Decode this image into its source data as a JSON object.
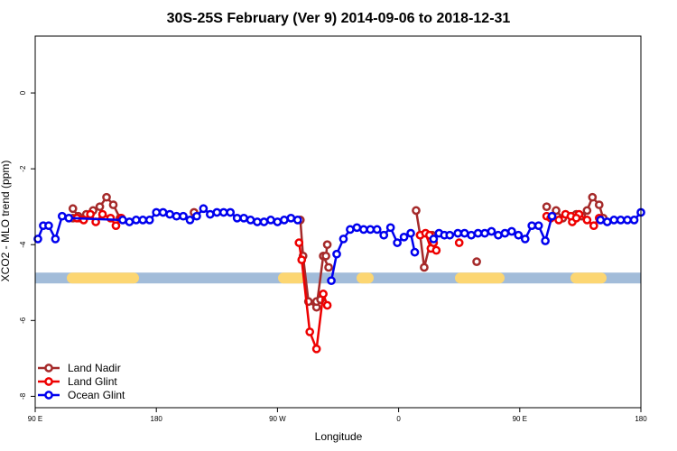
{
  "chart_data": {
    "type": "line",
    "title": "30S-25S February (Ver 9)   2014-09-06 to 2018-12-31",
    "xlabel": "Longitude",
    "ylabel": "XCO2 - MLO trend (ppm)",
    "xlim": [
      90,
      540
    ],
    "ylim": [
      -8.3,
      1.5
    ],
    "x_ticks": [
      90,
      180,
      270,
      360,
      450,
      540
    ],
    "x_tick_labels": [
      "90 E",
      "180",
      "90 W",
      "0",
      "90 E",
      "180"
    ],
    "y_ticks": [
      0,
      -2,
      -4,
      -6,
      -8
    ],
    "y_tick_labels": [
      "0",
      "-2",
      "-4",
      "-6",
      "-8"
    ],
    "band": {
      "y": -4.88,
      "base_color": "#a2bcd9",
      "land_color": "#fcd672",
      "land_segments": [
        [
          114,
          154
        ],
        [
          308,
          338
        ],
        [
          395,
          414
        ],
        [
          504,
          559
        ],
        [
          632,
          672
        ]
      ]
    },
    "legend_position": "bottom-left",
    "series": [
      {
        "name": "Land Nadir",
        "color": "#a52a2a",
        "segments": [
          [
            [
              118,
              -3.3
            ],
            [
              123,
              -3.3
            ],
            [
              128,
              -3.2
            ],
            [
              133,
              -3.1
            ],
            [
              138,
              -3.0
            ],
            [
              143,
              -2.75
            ],
            [
              148,
              -2.95
            ],
            [
              153,
              -3.3
            ]
          ],
          [
            [
              118,
              -3.05
            ],
            [
              122,
              -3.25
            ]
          ],
          [
            [
              287,
              -3.35
            ],
            [
              289,
              -4.3
            ],
            [
              293,
              -5.5
            ],
            [
              299,
              -5.65
            ],
            [
              304,
              -4.3
            ],
            [
              308,
              -4.6
            ]
          ],
          [
            [
              306,
              -4.3
            ],
            [
              307,
              -4.0
            ]
          ],
          [
            [
              373,
              -3.1
            ],
            [
              376,
              -3.75
            ],
            [
              379,
              -4.6
            ],
            [
              385,
              -3.75
            ]
          ],
          [
            [
              418,
              -4.45
            ]
          ],
          [
            [
              208,
              -3.15
            ]
          ],
          [
            [
              299,
              -5.5
            ],
            [
              302,
              -5.45
            ]
          ],
          [
            [
              477,
              -3.1
            ],
            [
              482,
              -3.3
            ],
            [
              492,
              -3.2
            ],
            [
              496,
              -3.25
            ],
            [
              500,
              -3.1
            ],
            [
              504,
              -2.75
            ],
            [
              509,
              -2.95
            ],
            [
              512,
              -3.3
            ]
          ],
          [
            [
              470,
              -3.0
            ]
          ]
        ]
      },
      {
        "name": "Land Glint",
        "color": "#ee0000",
        "segments": [
          [
            [
              121,
              -3.3
            ],
            [
              126,
              -3.35
            ],
            [
              131,
              -3.2
            ],
            [
              135,
              -3.4
            ],
            [
              140,
              -3.2
            ],
            [
              146,
              -3.3
            ],
            [
              150,
              -3.5
            ],
            [
              154,
              -3.3
            ]
          ],
          [
            [
              286,
              -3.95
            ],
            [
              288,
              -4.4
            ],
            [
              294,
              -6.3
            ],
            [
              299,
              -6.75
            ],
            [
              304,
              -5.3
            ],
            [
              307,
              -5.6
            ]
          ],
          [
            [
              376,
              -3.75
            ],
            [
              380,
              -3.7
            ],
            [
              384,
              -4.1
            ],
            [
              388,
              -4.15
            ]
          ],
          [
            [
              383,
              -3.75
            ],
            [
              386,
              -3.95
            ]
          ],
          [
            [
              405,
              -3.95
            ]
          ],
          [
            [
              470,
              -3.25
            ],
            [
              473,
              -3.3
            ],
            [
              479,
              -3.35
            ],
            [
              484,
              -3.2
            ],
            [
              489,
              -3.4
            ],
            [
              494,
              -3.2
            ],
            [
              500,
              -3.35
            ],
            [
              505,
              -3.5
            ],
            [
              509,
              -3.3
            ]
          ],
          [
            [
              488,
              -3.25
            ],
            [
              492,
              -3.3
            ]
          ]
        ]
      },
      {
        "name": "Ocean Glint",
        "color": "#0000ee",
        "segments": [
          [
            [
              92,
              -3.85
            ],
            [
              96,
              -3.5
            ],
            [
              100,
              -3.5
            ],
            [
              105,
              -3.85
            ],
            [
              110,
              -3.25
            ],
            [
              115,
              -3.3
            ],
            [
              155,
              -3.35
            ],
            [
              160,
              -3.4
            ],
            [
              165,
              -3.35
            ],
            [
              170,
              -3.35
            ],
            [
              175,
              -3.35
            ],
            [
              180,
              -3.15
            ],
            [
              185,
              -3.15
            ],
            [
              190,
              -3.2
            ],
            [
              195,
              -3.25
            ],
            [
              200,
              -3.25
            ],
            [
              205,
              -3.35
            ],
            [
              210,
              -3.25
            ],
            [
              215,
              -3.05
            ],
            [
              220,
              -3.2
            ],
            [
              225,
              -3.15
            ],
            [
              230,
              -3.15
            ],
            [
              235,
              -3.15
            ],
            [
              240,
              -3.3
            ],
            [
              245,
              -3.3
            ],
            [
              250,
              -3.35
            ],
            [
              255,
              -3.4
            ],
            [
              260,
              -3.4
            ],
            [
              265,
              -3.35
            ],
            [
              270,
              -3.4
            ],
            [
              275,
              -3.35
            ],
            [
              280,
              -3.3
            ],
            [
              285,
              -3.35
            ]
          ],
          [
            [
              310,
              -4.95
            ],
            [
              314,
              -4.25
            ],
            [
              319,
              -3.85
            ],
            [
              324,
              -3.6
            ],
            [
              329,
              -3.55
            ],
            [
              334,
              -3.6
            ],
            [
              339,
              -3.6
            ],
            [
              344,
              -3.6
            ],
            [
              349,
              -3.75
            ],
            [
              354,
              -3.55
            ],
            [
              359,
              -3.95
            ],
            [
              364,
              -3.8
            ],
            [
              369,
              -3.7
            ],
            [
              372,
              -4.2
            ]
          ],
          [
            [
              386,
              -3.85
            ],
            [
              390,
              -3.7
            ],
            [
              394,
              -3.75
            ],
            [
              398,
              -3.75
            ],
            [
              404,
              -3.7
            ],
            [
              409,
              -3.7
            ],
            [
              414,
              -3.75
            ],
            [
              419,
              -3.7
            ],
            [
              424,
              -3.7
            ],
            [
              429,
              -3.65
            ],
            [
              434,
              -3.75
            ],
            [
              439,
              -3.7
            ],
            [
              444,
              -3.65
            ],
            [
              449,
              -3.75
            ],
            [
              454,
              -3.85
            ],
            [
              459,
              -3.5
            ],
            [
              464,
              -3.5
            ],
            [
              469,
              -3.9
            ],
            [
              474,
              -3.25
            ]
          ],
          [
            [
              510,
              -3.35
            ],
            [
              515,
              -3.4
            ],
            [
              520,
              -3.35
            ],
            [
              525,
              -3.35
            ],
            [
              530,
              -3.35
            ],
            [
              535,
              -3.35
            ],
            [
              540,
              -3.15
            ]
          ]
        ]
      }
    ]
  }
}
